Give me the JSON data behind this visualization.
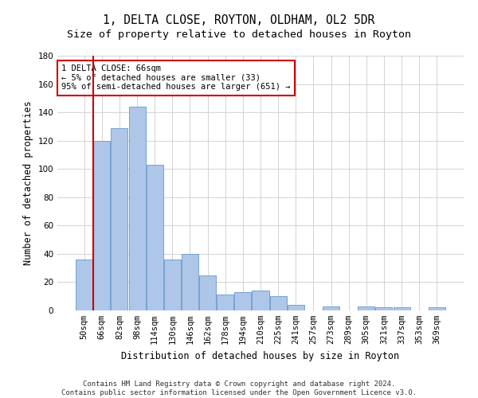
{
  "title": "1, DELTA CLOSE, ROYTON, OLDHAM, OL2 5DR",
  "subtitle": "Size of property relative to detached houses in Royton",
  "xlabel": "Distribution of detached houses by size in Royton",
  "ylabel": "Number of detached properties",
  "categories": [
    "50sqm",
    "66sqm",
    "82sqm",
    "98sqm",
    "114sqm",
    "130sqm",
    "146sqm",
    "162sqm",
    "178sqm",
    "194sqm",
    "210sqm",
    "225sqm",
    "241sqm",
    "257sqm",
    "273sqm",
    "289sqm",
    "305sqm",
    "321sqm",
    "337sqm",
    "353sqm",
    "369sqm"
  ],
  "values": [
    36,
    120,
    129,
    144,
    103,
    36,
    40,
    25,
    11,
    13,
    14,
    10,
    4,
    0,
    3,
    0,
    3,
    2,
    2,
    0,
    2
  ],
  "bar_color": "#aec6e8",
  "bar_edge_color": "#6699cc",
  "ylim": [
    0,
    180
  ],
  "yticks": [
    0,
    20,
    40,
    60,
    80,
    100,
    120,
    140,
    160,
    180
  ],
  "vline_color": "#cc0000",
  "box_text_line1": "1 DELTA CLOSE: 66sqm",
  "box_text_line2": "← 5% of detached houses are smaller (33)",
  "box_text_line3": "95% of semi-detached houses are larger (651) →",
  "box_edge_color": "#cc0000",
  "footer_line1": "Contains HM Land Registry data © Crown copyright and database right 2024.",
  "footer_line2": "Contains public sector information licensed under the Open Government Licence v3.0.",
  "title_fontsize": 10.5,
  "subtitle_fontsize": 9.5,
  "axis_label_fontsize": 8.5,
  "tick_fontsize": 7.5,
  "footer_fontsize": 6.5,
  "annotation_fontsize": 7.5
}
